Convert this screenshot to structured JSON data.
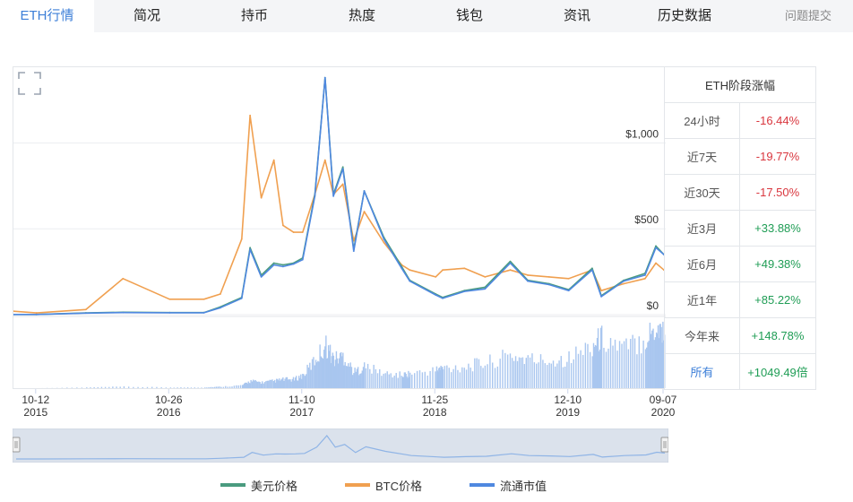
{
  "tabs": [
    {
      "label": "ETH行情",
      "active": true
    },
    {
      "label": "简况"
    },
    {
      "label": "持币"
    },
    {
      "label": "热度"
    },
    {
      "label": "钱包"
    },
    {
      "label": "资讯"
    },
    {
      "label": "历史数据"
    }
  ],
  "feedback_label": "问题提交",
  "stats": {
    "title": "ETH阶段涨幅",
    "rows": [
      {
        "label": "24小时",
        "value": "-16.44%",
        "sign": "neg"
      },
      {
        "label": "近7天",
        "value": "-19.77%",
        "sign": "neg"
      },
      {
        "label": "近30天",
        "value": "-17.50%",
        "sign": "neg"
      },
      {
        "label": "近3月",
        "value": "+33.88%",
        "sign": "pos"
      },
      {
        "label": "近6月",
        "value": "+49.38%",
        "sign": "pos"
      },
      {
        "label": "近1年",
        "value": "+85.22%",
        "sign": "pos"
      },
      {
        "label": "今年来",
        "value": "+148.78%",
        "sign": "pos"
      },
      {
        "label": "所有",
        "value": "+1049.49倍",
        "sign": "pos"
      }
    ]
  },
  "chart_data": {
    "type": "line",
    "y_ticks": [
      "$1,000",
      "$500",
      "$0"
    ],
    "y_tick_values": [
      1000,
      500,
      0
    ],
    "ylim": [
      0,
      1420
    ],
    "x_ticks": [
      {
        "day": "10-12",
        "year": "2015"
      },
      {
        "day": "10-26",
        "year": "2016"
      },
      {
        "day": "11-10",
        "year": "2017"
      },
      {
        "day": "11-25",
        "year": "2018"
      },
      {
        "day": "12-10",
        "year": "2019"
      },
      {
        "day": "09-07",
        "year": "2020"
      }
    ],
    "x_dates": [
      "2015-08-07",
      "2015-10-12",
      "2016-03-01",
      "2016-06-15",
      "2016-10-26",
      "2017-02-01",
      "2017-03-20",
      "2017-05-20",
      "2017-06-13",
      "2017-07-15",
      "2017-08-20",
      "2017-09-15",
      "2017-10-15",
      "2017-11-10",
      "2017-12-15",
      "2018-01-13",
      "2018-02-06",
      "2018-03-05",
      "2018-04-05",
      "2018-05-05",
      "2018-06-30",
      "2018-08-20",
      "2018-09-12",
      "2018-11-25",
      "2018-12-15",
      "2019-02-15",
      "2019-04-15",
      "2019-06-26",
      "2019-08-15",
      "2019-10-15",
      "2019-12-10",
      "2020-02-15",
      "2020-03-12",
      "2020-05-15",
      "2020-07-15",
      "2020-08-15",
      "2020-09-07"
    ],
    "series": [
      {
        "name": "美元价格",
        "color": "#4a9b7f",
        "values": [
          1,
          1,
          10,
          14,
          12,
          12,
          45,
          100,
          390,
          230,
          300,
          290,
          300,
          330,
          700,
          1380,
          700,
          860,
          380,
          720,
          450,
          280,
          200,
          120,
          100,
          140,
          160,
          310,
          200,
          180,
          145,
          270,
          110,
          200,
          240,
          400,
          350
        ]
      },
      {
        "name": "BTC价格",
        "color": "#f0a050",
        "values": [
          20,
          10,
          30,
          210,
          90,
          90,
          120,
          440,
          1160,
          680,
          900,
          520,
          480,
          480,
          700,
          900,
          700,
          760,
          430,
          600,
          420,
          290,
          260,
          220,
          260,
          270,
          220,
          260,
          230,
          220,
          210,
          260,
          140,
          180,
          210,
          300,
          260
        ]
      },
      {
        "name": "流通市值",
        "color": "#4f88e0",
        "values": [
          1,
          1,
          9,
          12,
          11,
          11,
          40,
          95,
          380,
          220,
          290,
          280,
          295,
          320,
          690,
          1380,
          690,
          850,
          370,
          720,
          440,
          270,
          195,
          115,
          95,
          135,
          150,
          300,
          195,
          175,
          140,
          260,
          105,
          195,
          230,
          390,
          350
        ]
      }
    ],
    "volume_note": "bars (relative)",
    "volume_values": [
      0,
      0,
      1,
      2,
      1,
      1,
      2,
      4,
      10,
      8,
      10,
      12,
      12,
      18,
      40,
      60,
      40,
      45,
      22,
      30,
      20,
      18,
      20,
      25,
      28,
      30,
      35,
      45,
      40,
      38,
      42,
      60,
      70,
      55,
      70,
      85,
      80
    ],
    "navigator_values": [
      1,
      1,
      10,
      14,
      12,
      12,
      45,
      100,
      390,
      230,
      300,
      290,
      300,
      330,
      700,
      1380,
      700,
      860,
      380,
      720,
      450,
      280,
      200,
      120,
      100,
      140,
      160,
      310,
      200,
      180,
      145,
      270,
      110,
      200,
      240,
      400,
      350
    ]
  }
}
